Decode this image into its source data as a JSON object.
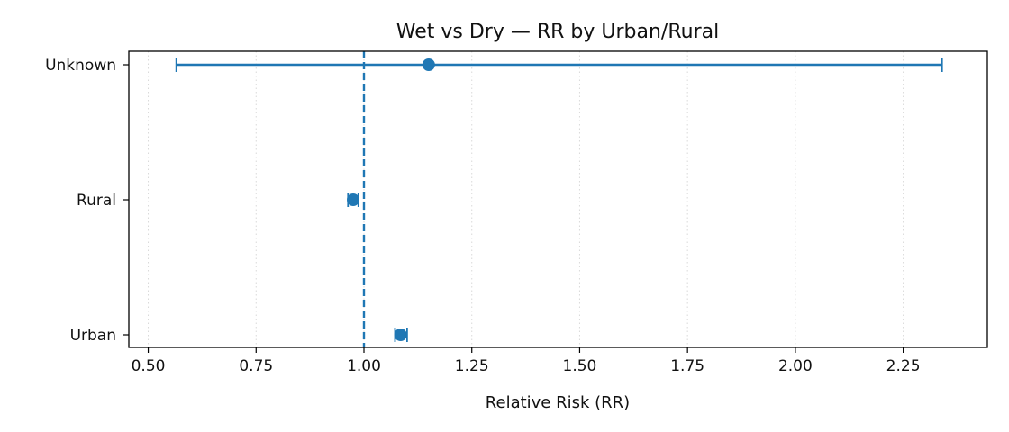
{
  "chart_data": {
    "type": "forest-plot",
    "title": "Wet vs Dry — RR by Urban/Rural",
    "xlabel": "Relative Risk (RR)",
    "ylabel": "",
    "xlim": [
      0.455,
      2.445
    ],
    "x_ticks": [
      0.5,
      0.75,
      1.0,
      1.25,
      1.5,
      1.75,
      2.0,
      2.25
    ],
    "x_tick_labels": [
      "0.50",
      "0.75",
      "1.00",
      "1.25",
      "1.50",
      "1.75",
      "2.00",
      "2.25"
    ],
    "categories": [
      "Unknown",
      "Rural",
      "Urban"
    ],
    "points": [
      {
        "category": "Unknown",
        "rr": 1.15,
        "ci_low": 0.565,
        "ci_high": 2.34
      },
      {
        "category": "Rural",
        "rr": 0.975,
        "ci_low": 0.963,
        "ci_high": 0.987
      },
      {
        "category": "Urban",
        "rr": 1.085,
        "ci_low": 1.072,
        "ci_high": 1.1
      }
    ],
    "reference_line": 1.0,
    "grid": "vertical dotted",
    "colors": {
      "series": "#1f77b4",
      "grid": "#d9d9d9",
      "axis": "#000000"
    }
  }
}
